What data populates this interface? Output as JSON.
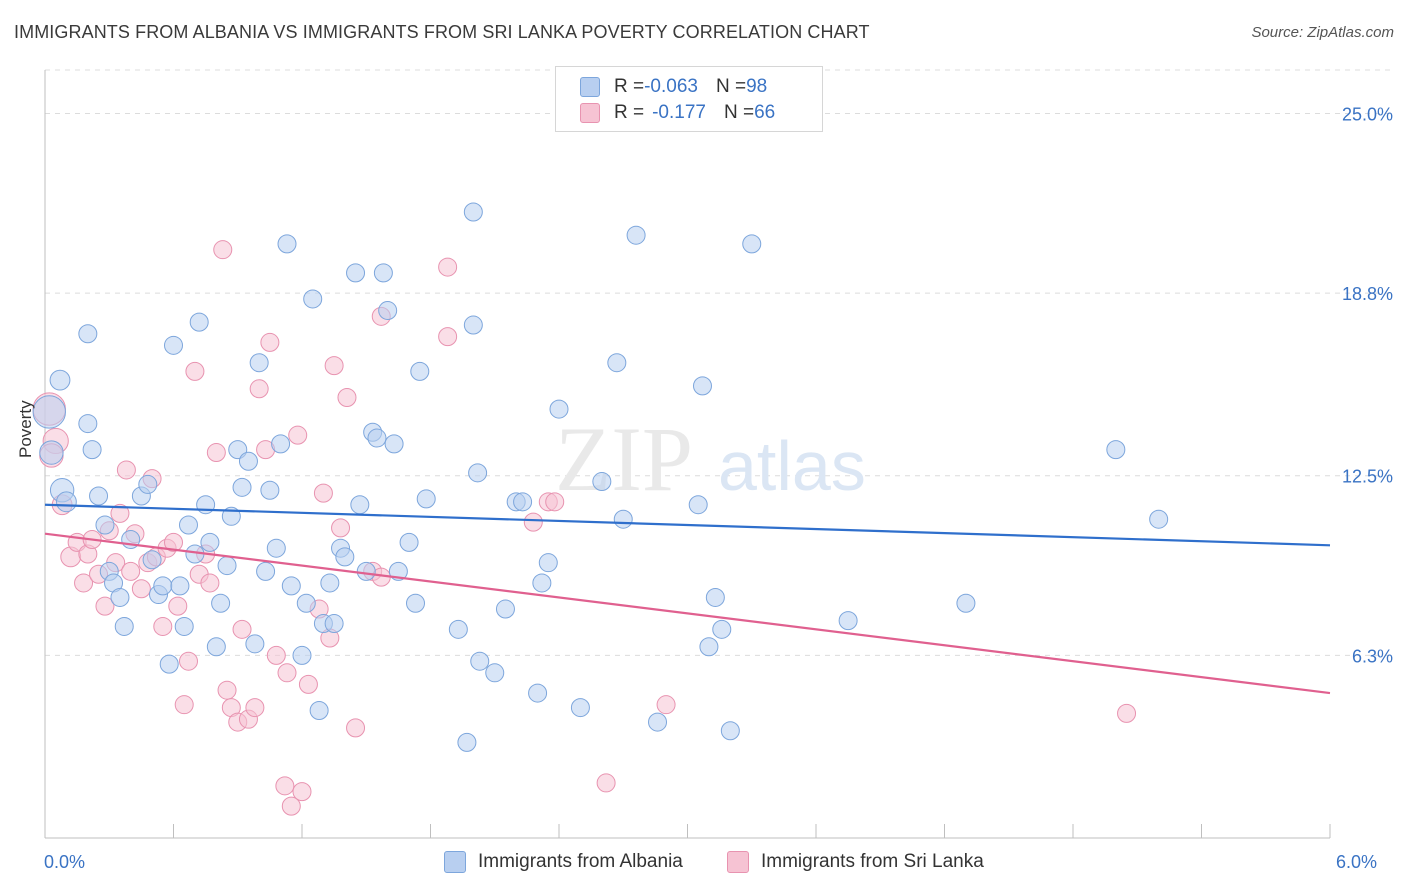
{
  "title": "IMMIGRANTS FROM ALBANIA VS IMMIGRANTS FROM SRI LANKA POVERTY CORRELATION CHART",
  "source": "Source: ZipAtlas.com",
  "watermark": {
    "zip": "ZIP",
    "atlas": "atlas"
  },
  "legend_top": {
    "albania": {
      "r_label": "R = ",
      "r_value": "-0.063",
      "n_label": "N = ",
      "n_value": "98"
    },
    "srilanka": {
      "r_label": "R = ",
      "r_value": "-0.177",
      "n_label": "N = ",
      "n_value": "66"
    }
  },
  "colors": {
    "albania_fill": "#b8cff0",
    "albania_stroke": "#7da6dc",
    "albania_line": "#2f6fcc",
    "srilanka_fill": "#f6c3d3",
    "srilanka_stroke": "#e893b0",
    "srilanka_line": "#e0608f",
    "tick_label": "#3a73c4",
    "grid": "#dcdcdc"
  },
  "chart_data": {
    "type": "scatter",
    "title": "IMMIGRANTS FROM ALBANIA VS IMMIGRANTS FROM SRI LANKA POVERTY CORRELATION CHART",
    "xlabel": "",
    "ylabel": "Poverty",
    "xlim": [
      0,
      6
    ],
    "ylim": [
      0,
      26.5
    ],
    "x_tick_labels": [
      "0.0%",
      "6.0%"
    ],
    "y_ticks": [
      6.3,
      12.5,
      18.8,
      25.0
    ],
    "y_tick_labels": [
      "6.3%",
      "12.5%",
      "18.8%",
      "25.0%"
    ],
    "grid": "horizontal dashed",
    "legend": [
      "Immigrants from Albania",
      "Immigrants from Sri Lanka"
    ],
    "series": [
      {
        "name": "Immigrants from Albania",
        "trend": {
          "x": [
            0,
            6
          ],
          "y": [
            11.5,
            10.1
          ]
        },
        "points": [
          [
            0.02,
            14.7,
            1.8
          ],
          [
            0.03,
            13.3,
            1.3
          ],
          [
            0.08,
            12.0,
            1.3
          ],
          [
            0.1,
            11.6,
            1.1
          ],
          [
            0.07,
            15.8,
            1.1
          ],
          [
            0.2,
            17.4,
            1.0
          ],
          [
            0.2,
            14.3,
            1.0
          ],
          [
            0.22,
            13.4,
            1.0
          ],
          [
            0.25,
            11.8,
            1.0
          ],
          [
            0.28,
            10.8,
            1.0
          ],
          [
            0.3,
            9.2,
            1.0
          ],
          [
            0.32,
            8.8,
            1.0
          ],
          [
            0.35,
            8.3,
            1.0
          ],
          [
            0.37,
            7.3,
            1.0
          ],
          [
            0.4,
            10.3,
            1.0
          ],
          [
            0.45,
            11.8,
            1.0
          ],
          [
            0.48,
            12.2,
            1.0
          ],
          [
            0.5,
            9.6,
            1.0
          ],
          [
            0.53,
            8.4,
            1.0
          ],
          [
            0.55,
            8.7,
            1.0
          ],
          [
            0.58,
            6.0,
            1.0
          ],
          [
            0.6,
            17.0,
            1.0
          ],
          [
            0.63,
            8.7,
            1.0
          ],
          [
            0.65,
            7.3,
            1.0
          ],
          [
            0.67,
            10.8,
            1.0
          ],
          [
            0.7,
            9.8,
            1.0
          ],
          [
            0.72,
            17.8,
            1.0
          ],
          [
            0.75,
            11.5,
            1.0
          ],
          [
            0.77,
            10.2,
            1.0
          ],
          [
            0.8,
            6.6,
            1.0
          ],
          [
            0.82,
            8.1,
            1.0
          ],
          [
            0.85,
            9.4,
            1.0
          ],
          [
            0.87,
            11.1,
            1.0
          ],
          [
            0.9,
            13.4,
            1.0
          ],
          [
            0.92,
            12.1,
            1.0
          ],
          [
            0.95,
            13.0,
            1.0
          ],
          [
            0.98,
            6.7,
            1.0
          ],
          [
            1.0,
            16.4,
            1.0
          ],
          [
            1.03,
            9.2,
            1.0
          ],
          [
            1.05,
            12.0,
            1.0
          ],
          [
            1.08,
            10.0,
            1.0
          ],
          [
            1.1,
            13.6,
            1.0
          ],
          [
            1.13,
            20.5,
            1.0
          ],
          [
            1.15,
            8.7,
            1.0
          ],
          [
            1.2,
            6.3,
            1.0
          ],
          [
            1.22,
            8.1,
            1.0
          ],
          [
            1.25,
            18.6,
            1.0
          ],
          [
            1.28,
            4.4,
            1.0
          ],
          [
            1.3,
            7.4,
            1.0
          ],
          [
            1.33,
            8.8,
            1.0
          ],
          [
            1.35,
            7.4,
            1.0
          ],
          [
            1.38,
            10.0,
            1.0
          ],
          [
            1.4,
            9.7,
            1.0
          ],
          [
            1.45,
            19.5,
            1.0
          ],
          [
            1.47,
            11.5,
            1.0
          ],
          [
            1.5,
            9.2,
            1.0
          ],
          [
            1.53,
            14.0,
            1.0
          ],
          [
            1.55,
            13.8,
            1.0
          ],
          [
            1.58,
            19.5,
            1.0
          ],
          [
            1.6,
            18.2,
            1.0
          ],
          [
            1.63,
            13.6,
            1.0
          ],
          [
            1.65,
            9.2,
            1.0
          ],
          [
            1.7,
            10.2,
            1.0
          ],
          [
            1.73,
            8.1,
            1.0
          ],
          [
            1.75,
            16.1,
            1.0
          ],
          [
            1.78,
            11.7,
            1.0
          ],
          [
            1.93,
            7.2,
            1.0
          ],
          [
            1.97,
            3.3,
            1.0
          ],
          [
            2.0,
            21.6,
            1.0
          ],
          [
            2.0,
            17.7,
            1.0
          ],
          [
            2.02,
            12.6,
            1.0
          ],
          [
            2.03,
            6.1,
            1.0
          ],
          [
            2.1,
            5.7,
            1.0
          ],
          [
            2.15,
            7.9,
            1.0
          ],
          [
            2.2,
            11.6,
            1.0
          ],
          [
            2.23,
            11.6,
            1.0
          ],
          [
            2.3,
            5.0,
            1.0
          ],
          [
            2.32,
            8.8,
            1.0
          ],
          [
            2.35,
            9.5,
            1.0
          ],
          [
            2.4,
            14.8,
            1.0
          ],
          [
            2.5,
            4.5,
            1.0
          ],
          [
            2.6,
            12.3,
            1.0
          ],
          [
            2.67,
            16.4,
            1.0
          ],
          [
            2.7,
            11.0,
            1.0
          ],
          [
            2.76,
            20.8,
            1.0
          ],
          [
            2.86,
            4.0,
            1.0
          ],
          [
            3.1,
            6.6,
            1.0
          ],
          [
            3.05,
            11.5,
            1.0
          ],
          [
            3.07,
            15.6,
            1.0
          ],
          [
            3.13,
            8.3,
            1.0
          ],
          [
            3.16,
            7.2,
            1.0
          ],
          [
            3.2,
            3.7,
            1.0
          ],
          [
            3.3,
            20.5,
            1.0
          ],
          [
            3.75,
            7.5,
            1.0
          ],
          [
            4.3,
            8.1,
            1.0
          ],
          [
            5.0,
            13.4,
            1.0
          ],
          [
            5.2,
            11.0,
            1.0
          ]
        ]
      },
      {
        "name": "Immigrants from Sri Lanka",
        "trend": {
          "x": [
            0,
            6
          ],
          "y": [
            10.5,
            5.0
          ]
        },
        "points": [
          [
            0.02,
            14.8,
            1.8
          ],
          [
            0.05,
            13.7,
            1.4
          ],
          [
            0.03,
            13.2,
            1.3
          ],
          [
            0.08,
            11.5,
            1.1
          ],
          [
            0.12,
            9.7,
            1.1
          ],
          [
            0.15,
            10.2,
            1.0
          ],
          [
            0.18,
            8.8,
            1.0
          ],
          [
            0.2,
            9.8,
            1.0
          ],
          [
            0.22,
            10.3,
            1.0
          ],
          [
            0.25,
            9.1,
            1.0
          ],
          [
            0.28,
            8.0,
            1.0
          ],
          [
            0.3,
            10.6,
            1.0
          ],
          [
            0.33,
            9.5,
            1.0
          ],
          [
            0.35,
            11.2,
            1.0
          ],
          [
            0.38,
            12.7,
            1.0
          ],
          [
            0.4,
            9.2,
            1.0
          ],
          [
            0.42,
            10.5,
            1.0
          ],
          [
            0.45,
            8.6,
            1.0
          ],
          [
            0.48,
            9.5,
            1.0
          ],
          [
            0.5,
            12.4,
            1.0
          ],
          [
            0.52,
            9.7,
            1.0
          ],
          [
            0.55,
            7.3,
            1.0
          ],
          [
            0.57,
            10.0,
            1.0
          ],
          [
            0.6,
            10.2,
            1.0
          ],
          [
            0.62,
            8.0,
            1.0
          ],
          [
            0.65,
            4.6,
            1.0
          ],
          [
            0.67,
            6.1,
            1.0
          ],
          [
            0.7,
            16.1,
            1.0
          ],
          [
            0.72,
            9.1,
            1.0
          ],
          [
            0.75,
            9.8,
            1.0
          ],
          [
            0.77,
            8.8,
            1.0
          ],
          [
            0.8,
            13.3,
            1.0
          ],
          [
            0.83,
            20.3,
            1.0
          ],
          [
            0.85,
            5.1,
            1.0
          ],
          [
            0.87,
            4.5,
            1.0
          ],
          [
            0.9,
            4.0,
            1.0
          ],
          [
            0.92,
            7.2,
            1.0
          ],
          [
            0.95,
            4.1,
            1.0
          ],
          [
            0.98,
            4.5,
            1.0
          ],
          [
            1.0,
            15.5,
            1.0
          ],
          [
            1.03,
            13.4,
            1.0
          ],
          [
            1.05,
            17.1,
            1.0
          ],
          [
            1.08,
            6.3,
            1.0
          ],
          [
            1.12,
            1.8,
            1.0
          ],
          [
            1.13,
            5.7,
            1.0
          ],
          [
            1.15,
            1.1,
            1.0
          ],
          [
            1.2,
            1.6,
            1.0
          ],
          [
            1.18,
            13.9,
            1.0
          ],
          [
            1.23,
            5.3,
            1.0
          ],
          [
            1.28,
            7.9,
            1.0
          ],
          [
            1.3,
            11.9,
            1.0
          ],
          [
            1.33,
            6.9,
            1.0
          ],
          [
            1.35,
            16.3,
            1.0
          ],
          [
            1.38,
            10.7,
            1.0
          ],
          [
            1.41,
            15.2,
            1.0
          ],
          [
            1.45,
            3.8,
            1.0
          ],
          [
            1.53,
            9.2,
            1.0
          ],
          [
            1.57,
            9.0,
            1.0
          ],
          [
            1.57,
            18.0,
            1.0
          ],
          [
            1.88,
            19.7,
            1.0
          ],
          [
            1.88,
            17.3,
            1.0
          ],
          [
            2.28,
            10.9,
            1.0
          ],
          [
            2.35,
            11.6,
            1.0
          ],
          [
            2.38,
            11.6,
            1.0
          ],
          [
            2.62,
            1.9,
            1.0
          ],
          [
            2.9,
            4.6,
            1.0
          ],
          [
            5.05,
            4.3,
            1.0
          ]
        ]
      }
    ]
  },
  "legend_bottom": {
    "albania": "Immigrants from Albania",
    "srilanka": "Immigrants from Sri Lanka"
  },
  "axis": {
    "y_title": "Poverty",
    "x_min_label": "0.0%",
    "x_max_label": "6.0%"
  }
}
